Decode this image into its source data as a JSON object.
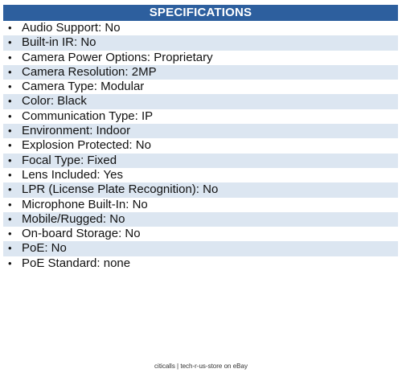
{
  "header": {
    "title": "SPECIFICATIONS"
  },
  "specs": [
    "Audio Support: No",
    "Built-in IR: No",
    "Camera Power Options: Proprietary",
    "Camera Resolution: 2MP",
    "Camera Type: Modular",
    "Color: Black",
    "Communication Type: IP",
    "Environment: Indoor",
    "Explosion Protected: No",
    "Focal Type: Fixed",
    "Lens Included: Yes",
    "LPR (License Plate Recognition): No",
    "Microphone Built-In: No",
    "Mobile/Rugged: No",
    "On-board Storage: No",
    "PoE: No",
    "PoE Standard: none"
  ],
  "bullet_glyph": "•",
  "footer": {
    "text": "citicalls | tech-r-us-store on eBay"
  },
  "colors": {
    "header_bg": "#2d5f9e",
    "shaded_row": "#dce6f1"
  }
}
